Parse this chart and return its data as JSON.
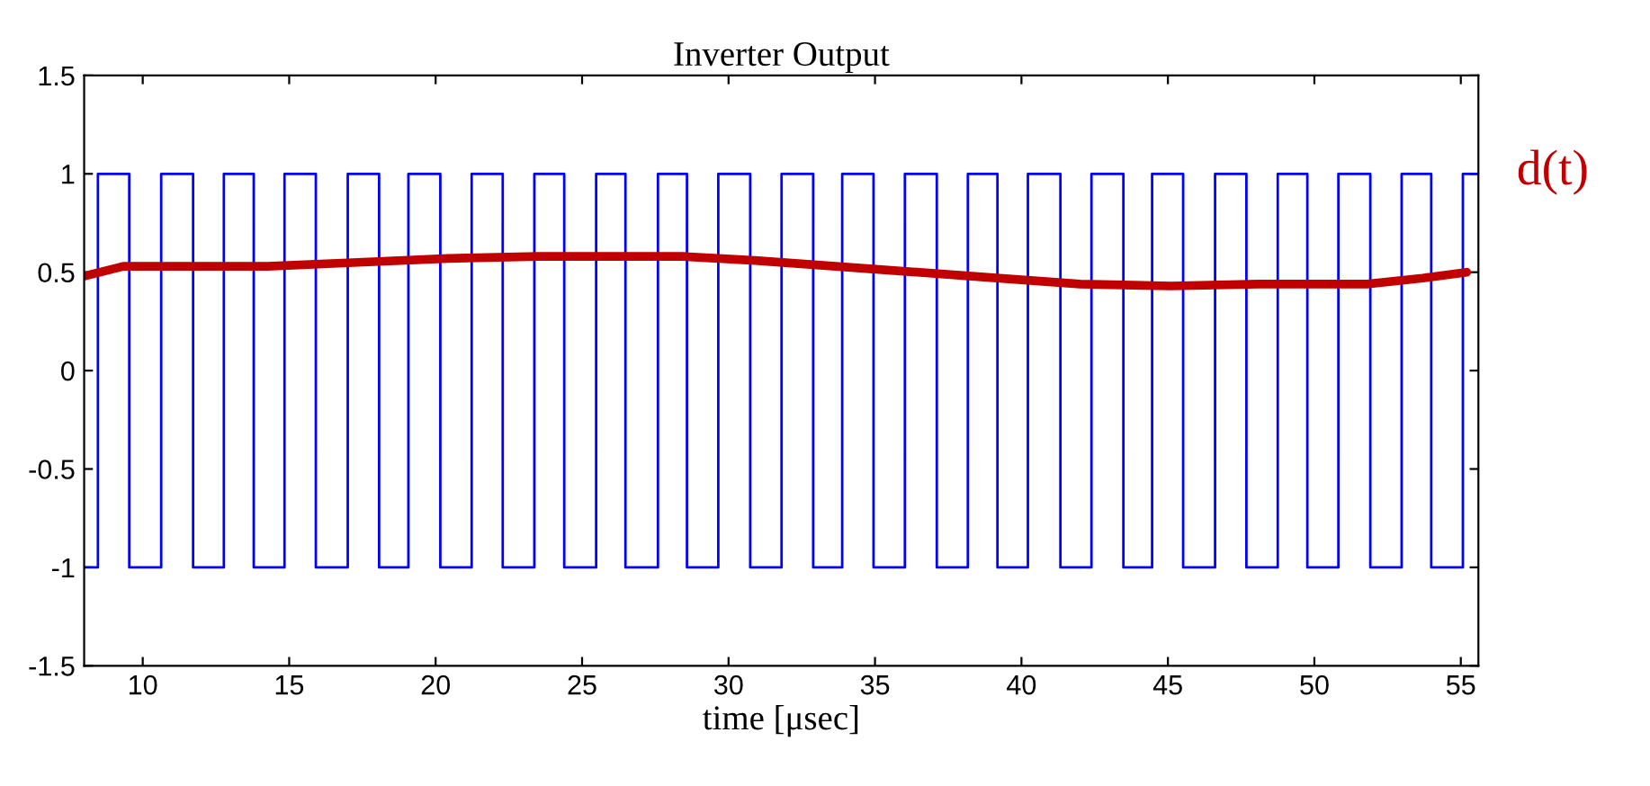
{
  "chart_data": {
    "type": "line",
    "title": "Inverter Output",
    "xlabel": "time [μsec]",
    "xlim": [
      8,
      55.6
    ],
    "xticks": [
      10,
      15,
      20,
      25,
      30,
      35,
      40,
      45,
      50,
      55
    ],
    "ylim": [
      -1.5,
      1.5
    ],
    "yticks": [
      -1.5,
      -1,
      -0.5,
      0,
      0.5,
      1,
      1.5
    ],
    "grid": false,
    "legend": false,
    "series": [
      {
        "type": "step",
        "color": "#0000ff",
        "x": [
          8,
          8.47,
          9.54,
          10.63,
          11.72,
          12.77,
          13.79,
          14.84,
          15.91,
          17.0,
          18.07,
          19.07,
          20.16,
          21.23,
          22.29,
          23.37,
          24.39,
          25.48,
          26.48,
          27.59,
          28.58,
          29.65,
          30.74,
          31.81,
          32.89,
          33.88,
          34.95,
          36.02,
          37.11,
          38.17,
          39.18,
          40.22,
          41.33,
          42.39,
          43.48,
          44.46,
          45.52,
          46.61,
          47.68,
          48.75,
          49.76,
          50.82,
          51.91,
          52.98,
          53.99,
          55.07,
          55.6
        ],
        "values": [
          -1,
          1,
          -1,
          1,
          -1,
          1,
          -1,
          1,
          -1,
          1,
          -1,
          1,
          -1,
          1,
          -1,
          1,
          -1,
          1,
          -1,
          1,
          -1,
          1,
          -1,
          1,
          -1,
          1,
          -1,
          1,
          -1,
          1,
          -1,
          1,
          -1,
          1,
          -1,
          1,
          -1,
          1,
          -1,
          1,
          -1,
          1,
          -1,
          1,
          -1,
          1,
          1
        ]
      },
      {
        "name": "d(t)",
        "color": "#c00000",
        "x": [
          8.0,
          9.34,
          11.19,
          14.27,
          17.35,
          20.43,
          23.51,
          28.44,
          30.9,
          34.6,
          38.3,
          42.0,
          45.1,
          48.1,
          51.8,
          53.7,
          55.2
        ],
        "values": [
          0.48,
          0.53,
          0.53,
          0.53,
          0.55,
          0.57,
          0.58,
          0.58,
          0.56,
          0.52,
          0.48,
          0.44,
          0.43,
          0.44,
          0.44,
          0.47,
          0.5
        ]
      }
    ]
  }
}
